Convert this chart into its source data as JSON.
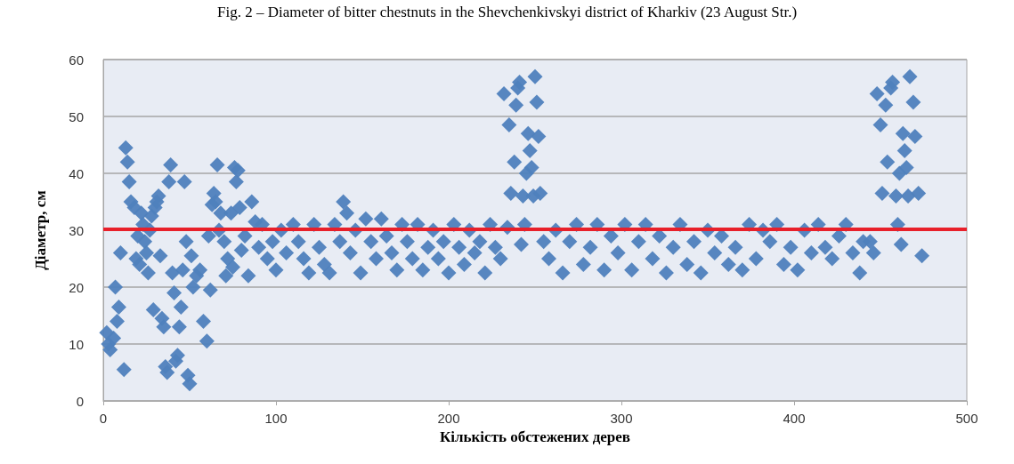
{
  "chart_data": {
    "type": "scatter",
    "title": "Fig. 2 – Diameter of bitter chestnuts in the Shevchenkivskyi district of Kharkiv (23 August Str.)",
    "xlabel": "Кількість обстежених дерев",
    "ylabel": "Діаметр, см",
    "x": [
      2,
      3,
      4,
      6,
      7,
      8,
      9,
      10,
      12,
      13,
      14,
      15,
      16,
      18,
      19,
      20,
      21,
      22,
      23,
      24,
      25,
      26,
      27,
      28,
      29,
      30,
      31,
      32,
      33,
      34,
      35,
      36,
      37,
      38,
      39,
      40,
      41,
      42,
      43,
      44,
      45,
      46,
      47,
      48,
      49,
      50,
      51,
      52,
      54,
      56,
      58,
      60,
      61,
      62,
      63,
      64,
      65,
      66,
      67,
      68,
      70,
      71,
      72,
      74,
      75,
      76,
      77,
      78,
      79,
      80,
      82,
      84,
      86,
      88,
      90,
      92,
      95,
      98,
      100,
      103,
      106,
      110,
      113,
      116,
      119,
      122,
      125,
      128,
      131,
      134,
      137,
      139,
      141,
      143,
      146,
      149,
      152,
      155,
      158,
      161,
      164,
      167,
      170,
      173,
      176,
      179,
      182,
      185,
      188,
      191,
      194,
      197,
      200,
      203,
      206,
      209,
      212,
      215,
      218,
      221,
      224,
      227,
      230,
      232,
      234,
      235,
      236,
      238,
      239,
      240,
      241,
      242,
      243,
      244,
      245,
      246,
      247,
      248,
      249,
      250,
      251,
      252,
      253,
      255,
      258,
      262,
      266,
      270,
      274,
      278,
      282,
      286,
      290,
      294,
      298,
      302,
      306,
      310,
      314,
      318,
      322,
      326,
      330,
      334,
      338,
      342,
      346,
      350,
      354,
      358,
      362,
      366,
      370,
      374,
      378,
      382,
      386,
      390,
      394,
      398,
      402,
      406,
      410,
      414,
      418,
      422,
      426,
      430,
      434,
      438,
      440,
      444,
      446,
      448,
      450,
      451,
      453,
      454,
      456,
      457,
      459,
      460,
      461,
      462,
      463,
      464,
      465,
      466,
      467,
      469,
      470,
      472,
      474
    ],
    "values": [
      12,
      10,
      9,
      11,
      20,
      14,
      16.5,
      26,
      5.5,
      44.5,
      42,
      38.5,
      35,
      34,
      25,
      29,
      24,
      33,
      31,
      28,
      26,
      22.5,
      30,
      32.5,
      16,
      34,
      35,
      36,
      25.5,
      14.5,
      13,
      6,
      5,
      38.5,
      41.5,
      22.5,
      19,
      7,
      8,
      13,
      16.5,
      23,
      38.5,
      28,
      4.5,
      3,
      25.5,
      20,
      22,
      23,
      14,
      10.5,
      29,
      19.5,
      34.5,
      36.5,
      35,
      41.5,
      30,
      33,
      28,
      22,
      25,
      33,
      23.5,
      41,
      38.5,
      40.5,
      34,
      26.5,
      29,
      22,
      35,
      31.5,
      27,
      31,
      25,
      28,
      23,
      30,
      26,
      31,
      28,
      25,
      22.5,
      31,
      27,
      24,
      22.5,
      31,
      28,
      35,
      33,
      26,
      30,
      22.5,
      32,
      28,
      25,
      32,
      29,
      26,
      23,
      31,
      28,
      25,
      31,
      23,
      27,
      30,
      25,
      28,
      22.5,
      31,
      27,
      24,
      30,
      26,
      28,
      22.5,
      31,
      27,
      25,
      54,
      30.5,
      48.5,
      36.5,
      42,
      52,
      55,
      56,
      27.5,
      36,
      31,
      40,
      47,
      44,
      41,
      36,
      57,
      52.5,
      46.5,
      36.5,
      28,
      25,
      30,
      22.5,
      28,
      31,
      24,
      27,
      31,
      23,
      29,
      26,
      31,
      23,
      28,
      31,
      25,
      29,
      22.5,
      27,
      31,
      24,
      28,
      22.5,
      30,
      26,
      29,
      24,
      27,
      23,
      31,
      25,
      30,
      28,
      31,
      24,
      27,
      23,
      30,
      26,
      31,
      27,
      25,
      29,
      31,
      26,
      22.5,
      28,
      28,
      26,
      54,
      48.5,
      36.5,
      52,
      42,
      55,
      56,
      36,
      31,
      40,
      27.5,
      47,
      44,
      41,
      36,
      57,
      52.5,
      46.5,
      36.5,
      25.5
    ],
    "color": "#4f81bd",
    "marker": "diamond",
    "xlim": [
      0,
      500
    ],
    "xticks": [
      0,
      100,
      200,
      300,
      400,
      500
    ],
    "ylim": [
      0,
      60
    ],
    "yticks": [
      0,
      10,
      20,
      30,
      40,
      50,
      60
    ],
    "grid": "y",
    "ref_lines": [
      {
        "axis": "y",
        "value": 30.2,
        "color": "#e8202a",
        "line_style": "solid"
      }
    ]
  }
}
